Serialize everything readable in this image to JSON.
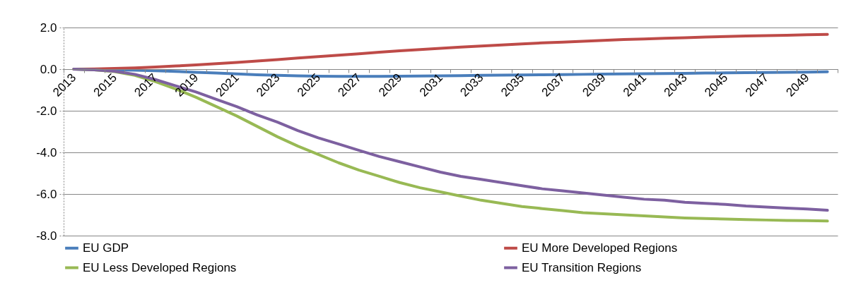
{
  "chart_data": {
    "type": "line",
    "categories": [
      "2013",
      null,
      "2015",
      null,
      "2017",
      null,
      "2019",
      null,
      "2021",
      null,
      "2023",
      null,
      "2025",
      null,
      "2027",
      null,
      "2029",
      null,
      "2031",
      null,
      "2033",
      null,
      "2035",
      null,
      "2037",
      null,
      "2039",
      null,
      "2041",
      null,
      "2043",
      null,
      "2045",
      null,
      "2047",
      null,
      "2049",
      null
    ],
    "series": [
      {
        "name": "EU GDP",
        "color": "#4a7ebb",
        "values": [
          0,
          -0.01,
          -0.03,
          -0.05,
          -0.08,
          -0.11,
          -0.15,
          -0.19,
          -0.23,
          -0.27,
          -0.3,
          -0.32,
          -0.34,
          -0.35,
          -0.35,
          -0.35,
          -0.34,
          -0.33,
          -0.32,
          -0.31,
          -0.3,
          -0.29,
          -0.28,
          -0.27,
          -0.26,
          -0.25,
          -0.24,
          -0.23,
          -0.22,
          -0.21,
          -0.2,
          -0.19,
          -0.18,
          -0.17,
          -0.16,
          -0.15,
          -0.14,
          -0.13
        ]
      },
      {
        "name": "EU More Developed Regions",
        "color": "#be4b48",
        "values": [
          0,
          0.01,
          0.03,
          0.06,
          0.1,
          0.15,
          0.2,
          0.26,
          0.32,
          0.39,
          0.46,
          0.53,
          0.6,
          0.67,
          0.74,
          0.81,
          0.88,
          0.94,
          1.0,
          1.06,
          1.11,
          1.16,
          1.21,
          1.26,
          1.3,
          1.34,
          1.38,
          1.42,
          1.45,
          1.48,
          1.51,
          1.54,
          1.57,
          1.59,
          1.61,
          1.63,
          1.65,
          1.67
        ]
      },
      {
        "name": "EU Less Developed Regions",
        "color": "#98b954",
        "values": [
          0,
          -0.03,
          -0.12,
          -0.3,
          -0.6,
          -0.95,
          -1.35,
          -1.8,
          -2.25,
          -2.75,
          -3.25,
          -3.7,
          -4.1,
          -4.5,
          -4.85,
          -5.15,
          -5.45,
          -5.7,
          -5.9,
          -6.1,
          -6.3,
          -6.45,
          -6.6,
          -6.7,
          -6.8,
          -6.9,
          -6.95,
          -7.0,
          -7.05,
          -7.1,
          -7.15,
          -7.18,
          -7.2,
          -7.23,
          -7.25,
          -7.27,
          -7.28,
          -7.3
        ]
      },
      {
        "name": "EU Transition Regions",
        "color": "#7d60a0",
        "values": [
          0,
          -0.03,
          -0.1,
          -0.25,
          -0.5,
          -0.8,
          -1.1,
          -1.45,
          -1.8,
          -2.2,
          -2.55,
          -2.95,
          -3.3,
          -3.6,
          -3.9,
          -4.2,
          -4.45,
          -4.7,
          -4.95,
          -5.15,
          -5.3,
          -5.45,
          -5.6,
          -5.75,
          -5.85,
          -5.95,
          -6.05,
          -6.15,
          -6.25,
          -6.3,
          -6.4,
          -6.45,
          -6.5,
          -6.58,
          -6.63,
          -6.68,
          -6.72,
          -6.78
        ]
      }
    ],
    "ylim": [
      -8,
      2
    ],
    "yticks": [
      {
        "value": -8,
        "label": "-8.0"
      },
      {
        "value": -6,
        "label": "-6.0"
      },
      {
        "value": -4,
        "label": "-4.0"
      },
      {
        "value": -2,
        "label": "-2.0"
      },
      {
        "value": 0,
        "label": "0.0"
      },
      {
        "value": 2,
        "label": "2.0"
      }
    ],
    "grid": "y",
    "legend": "bottom",
    "line_style": "solid",
    "marker": "none"
  }
}
